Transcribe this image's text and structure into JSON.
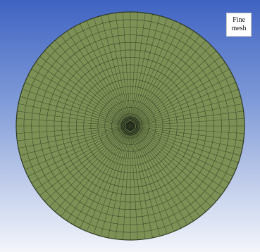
{
  "figure": {
    "label_lines": [
      "Fine",
      "mesh"
    ],
    "colors": {
      "background_top": "#3f63c2",
      "background_bottom": "#f3f5fb",
      "mesh_fill": "#7d9156",
      "mesh_lines": "#2e3a1f",
      "core_dark": "#1c2418"
    },
    "mesh": {
      "shape": "circle",
      "element_type": "quadrilateral",
      "radial_divisions": 16,
      "circumferential_divisions": 96,
      "center_refinement": true
    }
  }
}
